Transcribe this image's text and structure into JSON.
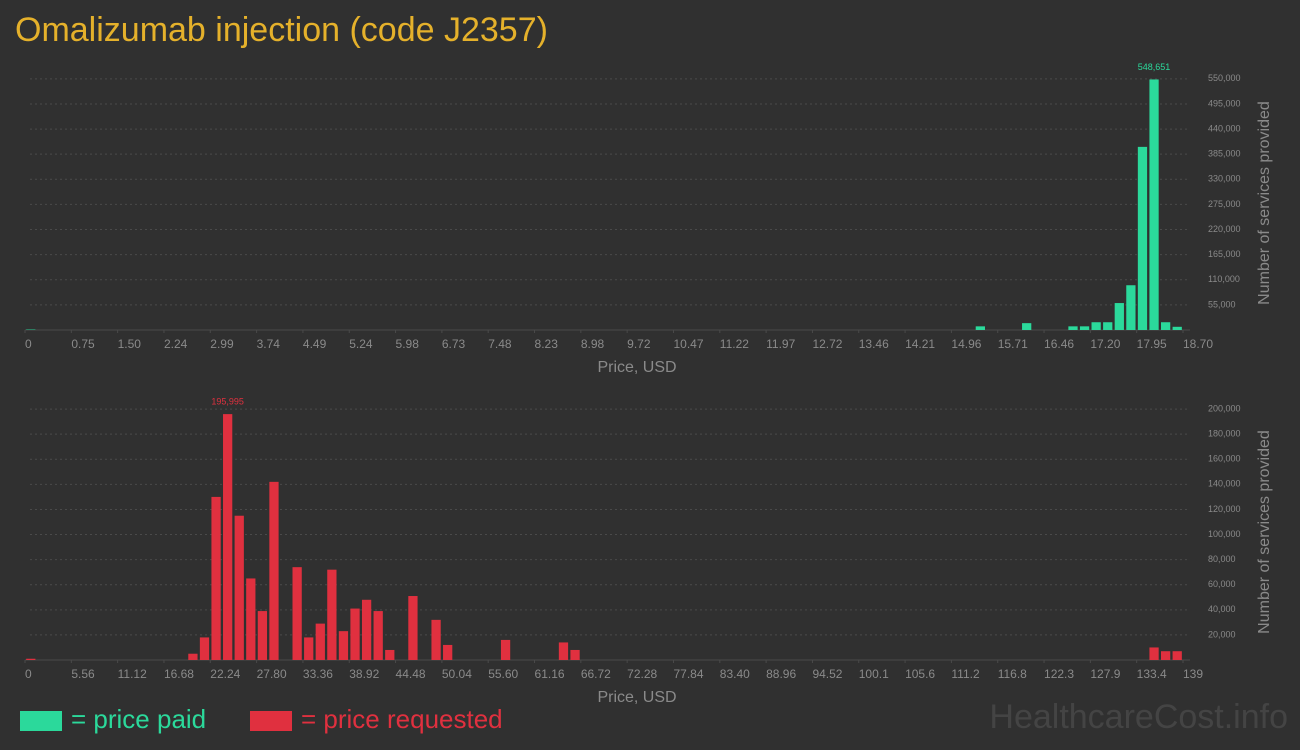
{
  "title": "Omalizumab injection (code J2357)",
  "watermark": "HealthcareCost.info",
  "chart_data": [
    {
      "type": "histogram",
      "name": "= price paid",
      "color": "#2bd99b",
      "xlabel": "Price, USD",
      "ylabel": "Number of services provided",
      "grid": true,
      "xlim": [
        0,
        18.7
      ],
      "ylim": [
        0,
        600000
      ],
      "bins": [
        0,
        0.187,
        0.374,
        0.561,
        0.748,
        0.935,
        1.122,
        1.309,
        1.496,
        1.683,
        1.87,
        2.057,
        2.244,
        2.431,
        2.618,
        2.805,
        2.992,
        3.179,
        3.366,
        3.553,
        3.74,
        3.927,
        4.114,
        4.301,
        4.488,
        4.675,
        4.862,
        5.049,
        5.236,
        5.423,
        5.61,
        5.797,
        5.984,
        6.171,
        6.358,
        6.545,
        6.732,
        6.919,
        7.106,
        7.293,
        7.48,
        7.667,
        7.854,
        8.041,
        8.228,
        8.415,
        8.602,
        8.789,
        8.976,
        9.163,
        9.35,
        9.537,
        9.724,
        9.911,
        10.098,
        10.285,
        10.472,
        10.659,
        10.846,
        11.033,
        11.22,
        11.407,
        11.594,
        11.781,
        11.968,
        12.155,
        12.342,
        12.529,
        12.716,
        12.903,
        13.09,
        13.277,
        13.464,
        13.651,
        13.838,
        14.025,
        14.212,
        14.399,
        14.586,
        14.773,
        14.96,
        15.147,
        15.334,
        15.521,
        15.708,
        15.895,
        16.082,
        16.269,
        16.456,
        16.643,
        16.83,
        17.017,
        17.204,
        17.391,
        17.578,
        17.765,
        17.952,
        18.139,
        18.326,
        18.513,
        18.7
      ],
      "values": [
        1000,
        0,
        0,
        0,
        0,
        0,
        0,
        0,
        0,
        0,
        0,
        0,
        0,
        0,
        0,
        0,
        0,
        0,
        0,
        0,
        0,
        0,
        0,
        0,
        0,
        0,
        0,
        0,
        0,
        0,
        0,
        0,
        0,
        0,
        0,
        0,
        0,
        0,
        0,
        0,
        0,
        0,
        0,
        0,
        0,
        0,
        0,
        0,
        0,
        0,
        0,
        0,
        0,
        0,
        0,
        0,
        0,
        0,
        0,
        0,
        0,
        0,
        0,
        0,
        0,
        0,
        0,
        0,
        0,
        0,
        0,
        0,
        0,
        0,
        0,
        0,
        0,
        0,
        0,
        0,
        0,
        0,
        8000,
        0,
        0,
        0,
        15000,
        0,
        0,
        0,
        8000,
        8000,
        17000,
        17000,
        59000,
        98000,
        401000,
        548651,
        17000,
        7000
      ],
      "value_labels": [
        null,
        null,
        null,
        null,
        null,
        null,
        null,
        null,
        null,
        null,
        null,
        null,
        null,
        null,
        null,
        null,
        null,
        null,
        null,
        null,
        null,
        null,
        null,
        null,
        null,
        null,
        null,
        null,
        null,
        null,
        null,
        null,
        null,
        null,
        null,
        null,
        null,
        null,
        null,
        null,
        null,
        null,
        null,
        null,
        null,
        null,
        null,
        null,
        null,
        null,
        null,
        null,
        null,
        null,
        null,
        null,
        null,
        null,
        null,
        null,
        null,
        null,
        null,
        null,
        null,
        null,
        null,
        null,
        null,
        null,
        null,
        null,
        null,
        null,
        null,
        null,
        null,
        null,
        null,
        null,
        null,
        null,
        null,
        null,
        null,
        null,
        null,
        null,
        null,
        null,
        null,
        null,
        null,
        null,
        null,
        null,
        null,
        "548,651",
        null,
        null
      ],
      "xticks": [
        0,
        {
          "value": 0.748,
          "label": "0.75"
        },
        {
          "value": 1.496,
          "label": "1.50"
        },
        {
          "value": 2.244,
          "label": "2.24"
        },
        {
          "value": 2.992,
          "label": "2.99"
        },
        3.74,
        {
          "value": 4.488,
          "label": "4.49"
        },
        {
          "value": 5.236,
          "label": "5.24"
        },
        {
          "value": 5.984,
          "label": "5.98"
        },
        {
          "value": 6.732,
          "label": "6.73"
        },
        7.48,
        {
          "value": 8.228,
          "label": "8.23"
        },
        {
          "value": 8.976,
          "label": "8.98"
        },
        {
          "value": 9.724,
          "label": "9.72"
        },
        {
          "value": 10.472,
          "label": "10.47"
        },
        11.22,
        {
          "value": 11.968,
          "label": "11.97"
        },
        {
          "value": 12.716,
          "label": "12.72"
        },
        {
          "value": 13.464,
          "label": "13.46"
        },
        {
          "value": 14.212,
          "label": "14.21"
        },
        14.96,
        {
          "value": 15.708,
          "label": "15.71"
        },
        {
          "value": 16.456,
          "label": "16.46"
        },
        {
          "value": 17.204,
          "label": "17.20"
        },
        {
          "value": 17.952,
          "label": "17.95"
        },
        {
          "value": 18.7,
          "label": "18.70"
        }
      ],
      "yticks": [
        {
          "value": 55000,
          "label": "55,000"
        },
        {
          "value": 110000,
          "label": "110,000"
        },
        {
          "value": 165000,
          "label": "165,000"
        },
        {
          "value": 220000,
          "label": "220,000"
        },
        {
          "value": 275000,
          "label": "275,000"
        },
        {
          "value": 330000,
          "label": "330,000"
        },
        {
          "value": 385000,
          "label": "385,000"
        },
        {
          "value": 440000,
          "label": "440,000"
        },
        {
          "value": 495000,
          "label": "495,000"
        },
        {
          "value": 550000,
          "label": "550,000"
        }
      ]
    },
    {
      "type": "histogram",
      "name": "= price requested",
      "color": "#e0303f",
      "xlabel": "Price, USD",
      "ylabel": "Number of services provided",
      "grid": true,
      "xlim": [
        0,
        139
      ],
      "ylim": [
        0,
        220000
      ],
      "bins": [
        0,
        1.39,
        2.78,
        4.17,
        5.56,
        6.95,
        8.34,
        9.73,
        11.12,
        12.51,
        13.9,
        15.29,
        16.68,
        18.07,
        19.46,
        20.85,
        22.24,
        23.63,
        25.02,
        26.41,
        27.8,
        29.19,
        30.58,
        31.97,
        33.36,
        34.75,
        36.14,
        37.53,
        38.92,
        40.31,
        41.7,
        43.09,
        44.48,
        45.87,
        47.26,
        48.65,
        50.04,
        51.43,
        52.82,
        54.21,
        55.6,
        56.99,
        58.38,
        59.77,
        61.16,
        62.55,
        63.94,
        65.33,
        66.72,
        68.11,
        69.5,
        70.89,
        72.28,
        73.67,
        75.06,
        76.45,
        77.84,
        79.23,
        80.62,
        82.01,
        83.4,
        84.79,
        86.18,
        87.57,
        88.96,
        90.35,
        91.74,
        93.13,
        94.52,
        95.91,
        97.3,
        98.69,
        100.08,
        101.47,
        102.86,
        104.25,
        105.64,
        107.03,
        108.42,
        109.81,
        111.2,
        112.59,
        113.98,
        115.37,
        116.76,
        118.15,
        119.54,
        120.93,
        122.32,
        123.71,
        125.1,
        126.49,
        127.88,
        129.27,
        130.66,
        132.05,
        133.44,
        134.83,
        136.22,
        137.61,
        139
      ],
      "values": [
        1000,
        0,
        0,
        0,
        0,
        0,
        0,
        0,
        0,
        0,
        0,
        0,
        0,
        0,
        5000,
        18000,
        130000,
        195995,
        115000,
        65000,
        39000,
        142000,
        0,
        74000,
        18000,
        29000,
        72000,
        23000,
        41000,
        48000,
        39000,
        8000,
        0,
        51000,
        0,
        32000,
        12000,
        0,
        0,
        0,
        0,
        16000,
        0,
        0,
        0,
        0,
        14000,
        8000,
        0,
        0,
        0,
        0,
        0,
        0,
        0,
        0,
        0,
        0,
        0,
        0,
        0,
        0,
        0,
        0,
        0,
        0,
        0,
        0,
        0,
        0,
        0,
        0,
        0,
        0,
        0,
        0,
        0,
        0,
        0,
        0,
        0,
        0,
        0,
        0,
        0,
        0,
        0,
        0,
        0,
        0,
        0,
        0,
        0,
        0,
        0,
        0,
        0,
        10000,
        7000,
        7000
      ],
      "value_labels": [
        null,
        null,
        null,
        null,
        null,
        null,
        null,
        null,
        null,
        null,
        null,
        null,
        null,
        null,
        null,
        null,
        null,
        "195,995",
        null,
        null,
        null,
        null,
        null,
        null,
        null,
        null,
        null,
        null,
        null,
        null,
        null,
        null,
        null,
        null,
        null,
        null,
        null,
        null,
        null,
        null,
        null,
        null,
        null,
        null,
        null,
        null,
        null,
        null,
        null,
        null,
        null,
        null,
        null,
        null,
        null,
        null,
        null,
        null,
        null,
        null,
        null,
        null,
        null,
        null,
        null,
        null,
        null,
        null,
        null,
        null,
        null,
        null,
        null,
        null,
        null,
        null,
        null,
        null,
        null,
        null,
        null,
        null,
        null,
        null,
        null,
        null,
        null,
        null,
        null,
        null,
        null,
        null,
        null,
        null,
        null,
        null,
        null,
        null,
        null,
        null
      ],
      "xticks": [
        0,
        5.56,
        11.12,
        16.68,
        22.24,
        {
          "value": 27.8,
          "label": "27.80"
        },
        33.36,
        38.92,
        44.48,
        50.04,
        {
          "value": 55.6,
          "label": "55.60"
        },
        61.16,
        66.72,
        72.28,
        77.84,
        {
          "value": 83.4,
          "label": "83.40"
        },
        88.96,
        94.52,
        {
          "value": 100.08,
          "label": "100.1"
        },
        {
          "value": 105.64,
          "label": "105.6"
        },
        111.2,
        {
          "value": 116.76,
          "label": "116.8"
        },
        {
          "value": 122.32,
          "label": "122.3"
        },
        {
          "value": 127.88,
          "label": "127.9"
        },
        {
          "value": 133.44,
          "label": "133.4"
        },
        139
      ],
      "yticks": [
        {
          "value": 20000,
          "label": "20,000"
        },
        {
          "value": 40000,
          "label": "40,000"
        },
        {
          "value": 60000,
          "label": "60,000"
        },
        {
          "value": 80000,
          "label": "80,000"
        },
        {
          "value": 100000,
          "label": "100,000"
        },
        {
          "value": 120000,
          "label": "120,000"
        },
        {
          "value": 140000,
          "label": "140,000"
        },
        {
          "value": 160000,
          "label": "160,000"
        },
        {
          "value": 180000,
          "label": "180,000"
        },
        {
          "value": 200000,
          "label": "200,000"
        }
      ]
    }
  ]
}
